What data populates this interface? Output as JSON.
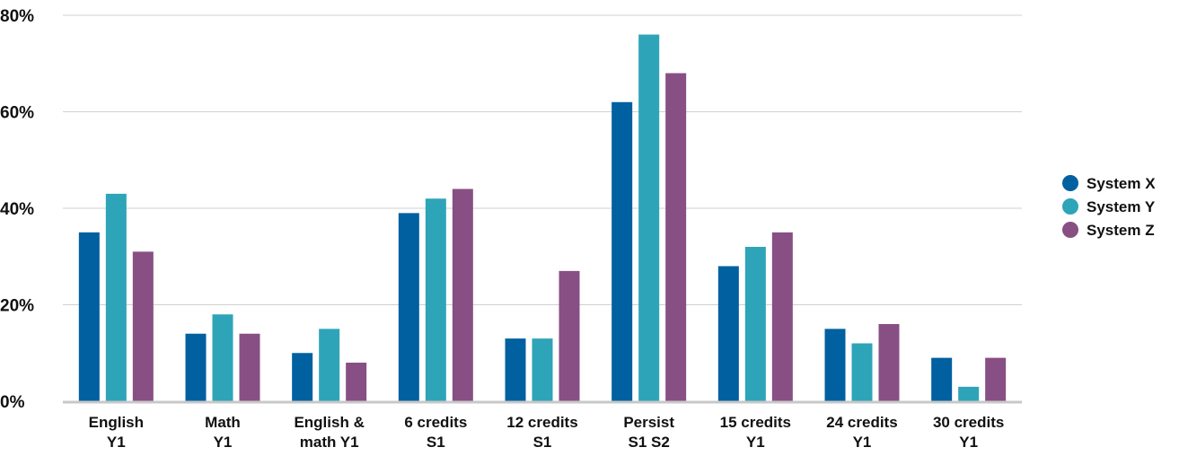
{
  "chart_data": {
    "type": "bar",
    "title": "",
    "xlabel": "",
    "ylabel": "",
    "ylim": [
      0,
      80
    ],
    "yticks": [
      0,
      20,
      40,
      60,
      80
    ],
    "ytick_labels": [
      "0%",
      "20%",
      "40%",
      "60%",
      "80%"
    ],
    "grid": true,
    "legend_position": "right",
    "categories": [
      [
        "English",
        "Y1"
      ],
      [
        "Math",
        "Y1"
      ],
      [
        "English &",
        "math Y1"
      ],
      [
        "6 credits",
        "S1"
      ],
      [
        "12 credits",
        "S1"
      ],
      [
        "Persist",
        "S1 S2"
      ],
      [
        "15 credits",
        "Y1"
      ],
      [
        "24 credits",
        "Y1"
      ],
      [
        "30 credits",
        "Y1"
      ]
    ],
    "series": [
      {
        "name": "System X",
        "color": "#0060a0",
        "values": [
          35,
          14,
          10,
          39,
          13,
          62,
          28,
          15,
          9
        ]
      },
      {
        "name": "System Y",
        "color": "#2ea4b8",
        "values": [
          43,
          18,
          15,
          42,
          13,
          76,
          32,
          12,
          3
        ]
      },
      {
        "name": "System Z",
        "color": "#884f84",
        "values": [
          31,
          14,
          8,
          44,
          27,
          68,
          35,
          16,
          9
        ]
      }
    ],
    "colors": {
      "grid": "#d0d0d0",
      "baseline": "#c8c8c8"
    }
  }
}
